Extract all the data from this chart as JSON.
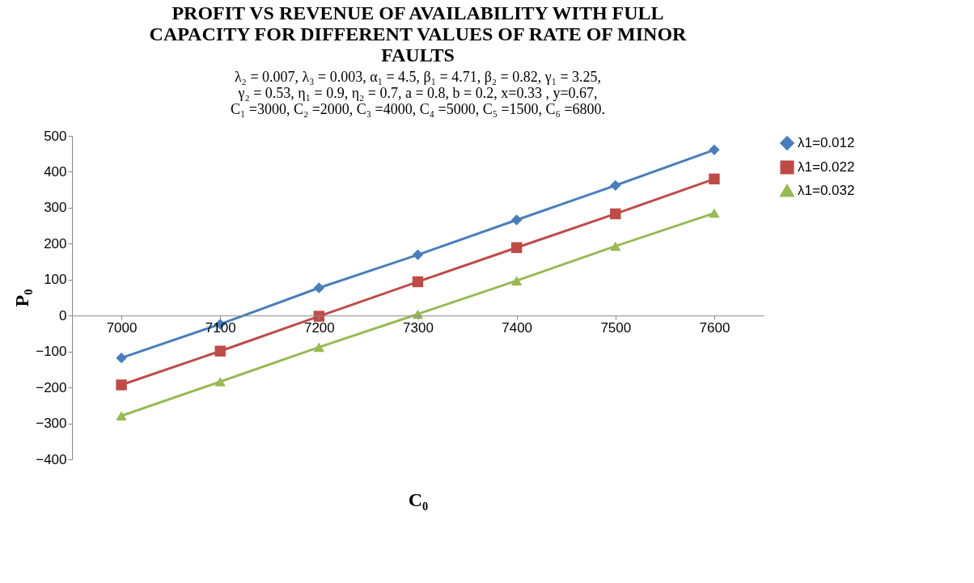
{
  "chart_data": {
    "type": "line",
    "title": [
      "PROFIT VS REVENUE OF AVAILABILITY WITH FULL",
      "CAPACITY FOR DIFFERENT VALUES OF RATE OF MINOR",
      "FAULTS"
    ],
    "subtitle": [
      "λ₂ = 0.007, λ₃ = 0.003, α₁ = 4.5, β₁ = 4.71, β₂ = 0.82, γ₁ = 3.25,",
      "γ₂ = 0.53, η₁ = 0.9,  η₂ = 0.7, a = 0.8,  b = 0.2,  x=0.33 , y=0.67,",
      "C₁ =3000, C₂ =2000, C₃ =4000, C₄ =5000, C₅ =1500, C₆ =6800."
    ],
    "xlabel": "C₀",
    "ylabel": "P₀",
    "x": [
      7000,
      7100,
      7200,
      7300,
      7400,
      7500,
      7600
    ],
    "xlim": [
      6950,
      7650
    ],
    "xticks": [
      7000,
      7100,
      7200,
      7300,
      7400,
      7500,
      7600
    ],
    "ylim": [
      -400,
      500
    ],
    "yticks": [
      -400,
      -300,
      -200,
      -100,
      0,
      100,
      200,
      300,
      400,
      500
    ],
    "grid": false,
    "legend": "right",
    "series": [
      {
        "name": "λ1=0.012",
        "color": "#4a7ebb",
        "marker": "diamond",
        "values": [
          -118,
          -24,
          77,
          169,
          266,
          362,
          461
        ]
      },
      {
        "name": "λ1=0.022",
        "color": "#be4b48",
        "marker": "square",
        "values": [
          -193,
          -99,
          -2,
          94,
          189,
          283,
          380
        ]
      },
      {
        "name": "λ1=0.032",
        "color": "#98b954",
        "marker": "triangle",
        "values": [
          -279,
          -184,
          -88,
          4,
          97,
          193,
          285
        ]
      }
    ]
  }
}
